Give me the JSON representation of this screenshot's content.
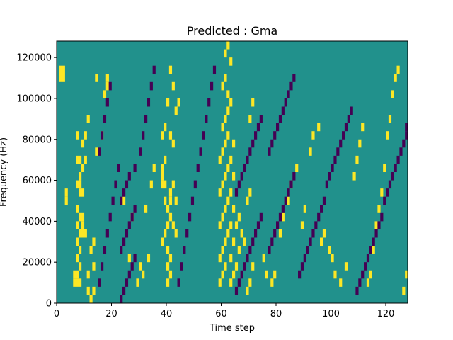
{
  "chart_data": {
    "type": "heatmap",
    "title": "Predicted : Gma",
    "xlabel": "Time step",
    "ylabel": "Frequency (Hz)",
    "xlim": [
      0,
      128
    ],
    "ylim": [
      0,
      128000
    ],
    "x_ticks": [
      0,
      20,
      40,
      60,
      80,
      100,
      120
    ],
    "x_tick_labels": [
      "0",
      "20",
      "40",
      "60",
      "80",
      "100",
      "120"
    ],
    "y_ticks": [
      0,
      20000,
      40000,
      60000,
      80000,
      100000,
      120000
    ],
    "y_tick_labels": [
      "0",
      "20000",
      "40000",
      "60000",
      "80000",
      "100000",
      "120000"
    ],
    "grid": false,
    "legend": "none",
    "colors": {
      "background": "#21918c",
      "high": "#fde725",
      "low": "#440154"
    },
    "row_height_hz": 4000,
    "high_cells": [
      [
        1,
        27
      ],
      [
        2,
        27
      ],
      [
        2,
        28
      ],
      [
        1,
        28
      ],
      [
        3,
        12
      ],
      [
        3,
        13
      ],
      [
        6,
        2
      ],
      [
        7,
        2
      ],
      [
        8,
        2
      ],
      [
        6,
        3
      ],
      [
        7,
        3
      ],
      [
        8,
        4
      ],
      [
        7,
        5
      ],
      [
        8,
        6
      ],
      [
        7,
        7
      ],
      [
        8,
        8
      ],
      [
        9,
        8
      ],
      [
        7,
        9
      ],
      [
        8,
        10
      ],
      [
        7,
        11
      ],
      [
        9,
        10
      ],
      [
        8,
        13
      ],
      [
        9,
        13
      ],
      [
        7,
        14
      ],
      [
        8,
        14
      ],
      [
        8,
        15
      ],
      [
        9,
        16
      ],
      [
        7,
        17
      ],
      [
        8,
        17
      ],
      [
        10,
        17
      ],
      [
        7,
        20
      ],
      [
        9,
        19
      ],
      [
        10,
        20
      ],
      [
        11,
        1
      ],
      [
        12,
        0
      ],
      [
        13,
        1
      ],
      [
        11,
        3
      ],
      [
        13,
        4
      ],
      [
        12,
        6
      ],
      [
        13,
        7
      ],
      [
        10,
        8
      ],
      [
        9,
        9
      ],
      [
        14,
        18
      ],
      [
        16,
        20
      ],
      [
        17,
        25
      ],
      [
        18,
        26
      ],
      [
        18,
        27
      ],
      [
        14,
        27
      ],
      [
        11,
        22
      ],
      [
        24,
        12
      ],
      [
        27,
        10
      ],
      [
        29,
        2
      ],
      [
        30,
        4
      ],
      [
        26,
        5
      ],
      [
        31,
        3
      ],
      [
        33,
        5
      ],
      [
        32,
        11
      ],
      [
        34,
        14
      ],
      [
        35,
        16
      ],
      [
        38,
        14
      ],
      [
        38,
        15
      ],
      [
        39,
        14
      ],
      [
        38,
        16
      ],
      [
        39,
        17
      ],
      [
        39,
        12
      ],
      [
        38,
        20
      ],
      [
        39,
        21
      ],
      [
        40,
        2
      ],
      [
        41,
        3
      ],
      [
        40,
        4
      ],
      [
        41,
        5
      ],
      [
        40,
        6
      ],
      [
        38,
        7
      ],
      [
        39,
        8
      ],
      [
        40,
        9
      ],
      [
        41,
        10
      ],
      [
        40,
        11
      ],
      [
        41,
        12
      ],
      [
        41,
        13
      ],
      [
        42,
        14
      ],
      [
        43,
        12
      ],
      [
        42,
        9
      ],
      [
        43,
        8
      ],
      [
        42,
        19
      ],
      [
        41,
        20
      ],
      [
        40,
        24
      ],
      [
        41,
        28
      ],
      [
        42,
        26
      ],
      [
        43,
        23
      ],
      [
        44,
        24
      ],
      [
        59,
        2
      ],
      [
        60,
        3
      ],
      [
        61,
        4
      ],
      [
        59,
        5
      ],
      [
        60,
        6
      ],
      [
        61,
        7
      ],
      [
        62,
        8
      ],
      [
        59,
        9
      ],
      [
        60,
        10
      ],
      [
        61,
        11
      ],
      [
        62,
        12
      ],
      [
        59,
        13
      ],
      [
        60,
        14
      ],
      [
        61,
        15
      ],
      [
        62,
        16
      ],
      [
        59,
        17
      ],
      [
        60,
        18
      ],
      [
        61,
        19
      ],
      [
        62,
        20
      ],
      [
        60,
        21
      ],
      [
        61,
        22
      ],
      [
        62,
        23
      ],
      [
        63,
        24
      ],
      [
        62,
        25
      ],
      [
        60,
        26
      ],
      [
        61,
        27
      ],
      [
        63,
        29
      ],
      [
        61,
        30
      ],
      [
        62,
        31
      ],
      [
        63,
        2
      ],
      [
        64,
        3
      ],
      [
        63,
        5
      ],
      [
        64,
        7
      ],
      [
        63,
        9
      ],
      [
        64,
        11
      ],
      [
        63,
        13
      ],
      [
        64,
        15
      ],
      [
        63,
        17
      ],
      [
        64,
        19
      ],
      [
        65,
        4
      ],
      [
        66,
        6
      ],
      [
        67,
        8
      ],
      [
        65,
        9
      ],
      [
        66,
        10
      ],
      [
        68,
        7
      ],
      [
        69,
        1
      ],
      [
        70,
        2
      ],
      [
        71,
        4
      ],
      [
        69,
        12
      ],
      [
        70,
        13
      ],
      [
        70,
        22
      ],
      [
        71,
        24
      ],
      [
        75,
        5
      ],
      [
        76,
        3
      ],
      [
        78,
        2
      ],
      [
        79,
        3
      ],
      [
        81,
        8
      ],
      [
        82,
        10
      ],
      [
        84,
        12
      ],
      [
        85,
        14
      ],
      [
        87,
        16
      ],
      [
        89,
        9
      ],
      [
        90,
        11
      ],
      [
        92,
        18
      ],
      [
        93,
        20
      ],
      [
        95,
        21
      ],
      [
        96,
        7
      ],
      [
        97,
        8
      ],
      [
        99,
        6
      ],
      [
        100,
        5
      ],
      [
        101,
        3
      ],
      [
        103,
        2
      ],
      [
        105,
        4
      ],
      [
        108,
        15
      ],
      [
        109,
        17
      ],
      [
        110,
        19
      ],
      [
        111,
        21
      ],
      [
        113,
        2
      ],
      [
        114,
        3
      ],
      [
        115,
        6
      ],
      [
        116,
        9
      ],
      [
        117,
        11
      ],
      [
        118,
        13
      ],
      [
        119,
        16
      ],
      [
        120,
        20
      ],
      [
        121,
        22
      ],
      [
        122,
        25
      ],
      [
        123,
        27
      ],
      [
        124,
        28
      ],
      [
        126,
        1
      ],
      [
        127,
        3
      ]
    ],
    "low_cells": [
      [
        23,
        0
      ],
      [
        24,
        1
      ],
      [
        25,
        2
      ],
      [
        26,
        3
      ],
      [
        27,
        4
      ],
      [
        28,
        5
      ],
      [
        23,
        6
      ],
      [
        24,
        7
      ],
      [
        25,
        8
      ],
      [
        26,
        9
      ],
      [
        27,
        10
      ],
      [
        28,
        11
      ],
      [
        23,
        12
      ],
      [
        24,
        13
      ],
      [
        25,
        14
      ],
      [
        26,
        15
      ],
      [
        28,
        16
      ],
      [
        15,
        2
      ],
      [
        16,
        4
      ],
      [
        17,
        6
      ],
      [
        18,
        8
      ],
      [
        19,
        10
      ],
      [
        20,
        12
      ],
      [
        21,
        14
      ],
      [
        22,
        16
      ],
      [
        15,
        18
      ],
      [
        16,
        20
      ],
      [
        17,
        22
      ],
      [
        18,
        24
      ],
      [
        19,
        26
      ],
      [
        30,
        18
      ],
      [
        31,
        20
      ],
      [
        32,
        22
      ],
      [
        33,
        24
      ],
      [
        34,
        26
      ],
      [
        35,
        28
      ],
      [
        44,
        2
      ],
      [
        45,
        4
      ],
      [
        46,
        6
      ],
      [
        47,
        8
      ],
      [
        48,
        10
      ],
      [
        49,
        12
      ],
      [
        50,
        14
      ],
      [
        51,
        16
      ],
      [
        52,
        18
      ],
      [
        53,
        20
      ],
      [
        54,
        22
      ],
      [
        55,
        24
      ],
      [
        56,
        26
      ],
      [
        57,
        28
      ],
      [
        65,
        1
      ],
      [
        66,
        2
      ],
      [
        67,
        3
      ],
      [
        68,
        4
      ],
      [
        69,
        5
      ],
      [
        70,
        6
      ],
      [
        71,
        7
      ],
      [
        72,
        8
      ],
      [
        73,
        9
      ],
      [
        74,
        10
      ],
      [
        65,
        13
      ],
      [
        66,
        14
      ],
      [
        67,
        15
      ],
      [
        68,
        16
      ],
      [
        69,
        17
      ],
      [
        70,
        18
      ],
      [
        71,
        19
      ],
      [
        72,
        20
      ],
      [
        73,
        21
      ],
      [
        74,
        22
      ],
      [
        77,
        6
      ],
      [
        78,
        7
      ],
      [
        79,
        8
      ],
      [
        80,
        9
      ],
      [
        81,
        10
      ],
      [
        82,
        11
      ],
      [
        83,
        12
      ],
      [
        84,
        13
      ],
      [
        85,
        14
      ],
      [
        86,
        15
      ],
      [
        77,
        18
      ],
      [
        78,
        19
      ],
      [
        79,
        20
      ],
      [
        80,
        21
      ],
      [
        81,
        22
      ],
      [
        82,
        23
      ],
      [
        83,
        24
      ],
      [
        84,
        25
      ],
      [
        85,
        26
      ],
      [
        86,
        27
      ],
      [
        88,
        3
      ],
      [
        89,
        4
      ],
      [
        90,
        5
      ],
      [
        91,
        6
      ],
      [
        92,
        7
      ],
      [
        93,
        8
      ],
      [
        94,
        9
      ],
      [
        95,
        10
      ],
      [
        96,
        11
      ],
      [
        97,
        12
      ],
      [
        98,
        14
      ],
      [
        99,
        15
      ],
      [
        100,
        16
      ],
      [
        101,
        17
      ],
      [
        102,
        18
      ],
      [
        103,
        19
      ],
      [
        104,
        20
      ],
      [
        105,
        21
      ],
      [
        106,
        22
      ],
      [
        107,
        23
      ],
      [
        109,
        1
      ],
      [
        110,
        2
      ],
      [
        111,
        3
      ],
      [
        112,
        4
      ],
      [
        113,
        5
      ],
      [
        114,
        6
      ],
      [
        115,
        7
      ],
      [
        116,
        8
      ],
      [
        117,
        9
      ],
      [
        118,
        10
      ],
      [
        119,
        12
      ],
      [
        120,
        13
      ],
      [
        121,
        14
      ],
      [
        122,
        15
      ],
      [
        123,
        16
      ],
      [
        124,
        17
      ],
      [
        125,
        18
      ],
      [
        126,
        19
      ],
      [
        127,
        20
      ],
      [
        127,
        21
      ]
    ]
  }
}
